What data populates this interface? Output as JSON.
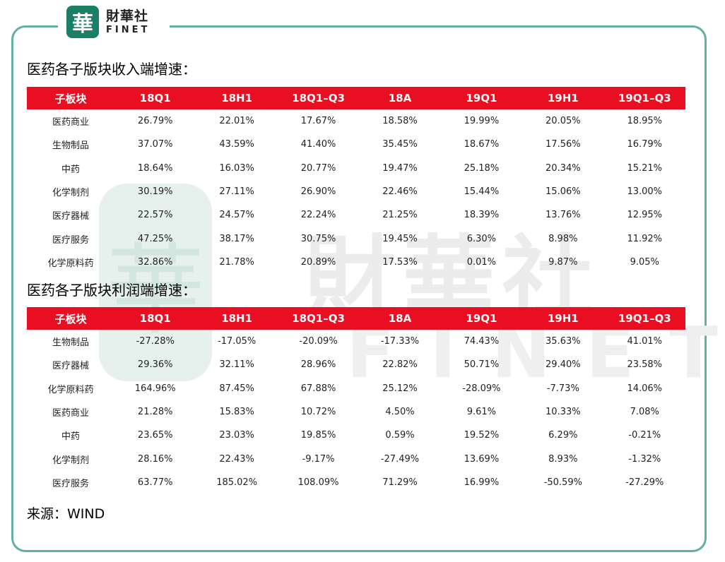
{
  "logo": {
    "mark": "華",
    "name_cn": "財華社",
    "name_en": "FINET"
  },
  "watermark": {
    "seal": "華",
    "text_cn": "財華社",
    "text_en": "FINET"
  },
  "revenue": {
    "title": "医药各子版块收入端增速：",
    "headers": [
      "子板块",
      "18Q1",
      "18H1",
      "18Q1–Q3",
      "18A",
      "19Q1",
      "19H1",
      "19Q1–Q3"
    ],
    "rows": [
      [
        "医药商业",
        "26.79%",
        "22.01%",
        "17.67%",
        "18.58%",
        "19.99%",
        "20.05%",
        "18.95%"
      ],
      [
        "生物制品",
        "37.07%",
        "43.59%",
        "41.40%",
        "35.45%",
        "18.67%",
        "17.56%",
        "16.79%"
      ],
      [
        "中药",
        "18.64%",
        "16.03%",
        "20.77%",
        "19.47%",
        "25.18%",
        "20.34%",
        "15.21%"
      ],
      [
        "化学制剂",
        "30.19%",
        "27.11%",
        "26.90%",
        "22.46%",
        "15.44%",
        "15.06%",
        "13.00%"
      ],
      [
        "医疗器械",
        "22.57%",
        "24.57%",
        "22.24%",
        "21.25%",
        "18.39%",
        "13.76%",
        "12.95%"
      ],
      [
        "医疗服务",
        "47.25%",
        "38.17%",
        "30.75%",
        "19.45%",
        "6.30%",
        "8.98%",
        "11.92%"
      ],
      [
        "化学原料药",
        "32.86%",
        "21.78%",
        "20.89%",
        "17.53%",
        "0.01%",
        "9.87%",
        "9.05%"
      ]
    ]
  },
  "profit": {
    "title": "医药各子版块利润端增速：",
    "headers": [
      "子板块",
      "18Q1",
      "18H1",
      "18Q1–Q3",
      "18A",
      "19Q1",
      "19H1",
      "19Q1–Q3"
    ],
    "rows": [
      [
        "生物制品",
        "-27.28%",
        "-17.05%",
        "-20.09%",
        "-17.33%",
        "74.43%",
        "35.63%",
        "41.01%"
      ],
      [
        "医疗器械",
        "29.36%",
        "32.11%",
        "28.96%",
        "22.82%",
        "50.71%",
        "29.40%",
        "23.58%"
      ],
      [
        "化学原料药",
        "164.96%",
        "87.45%",
        "67.88%",
        "25.12%",
        "-28.09%",
        "-7.73%",
        "14.06%"
      ],
      [
        "医药商业",
        "21.28%",
        "15.83%",
        "10.72%",
        "4.50%",
        "9.61%",
        "10.33%",
        "7.08%"
      ],
      [
        "中药",
        "23.65%",
        "23.03%",
        "19.85%",
        "0.59%",
        "19.52%",
        "6.29%",
        "-0.21%"
      ],
      [
        "化学制剂",
        "28.16%",
        "22.43%",
        "-9.17%",
        "-27.49%",
        "13.69%",
        "8.93%",
        "-1.32%"
      ],
      [
        "医疗服务",
        "63.77%",
        "185.02%",
        "108.09%",
        "71.29%",
        "16.99%",
        "-50.59%",
        "-27.29%"
      ]
    ]
  },
  "source": "来源：WIND",
  "colors": {
    "header_red": "#ea0e23",
    "frame_teal": "#64b0a4",
    "logo_green": "#1b7f67"
  }
}
